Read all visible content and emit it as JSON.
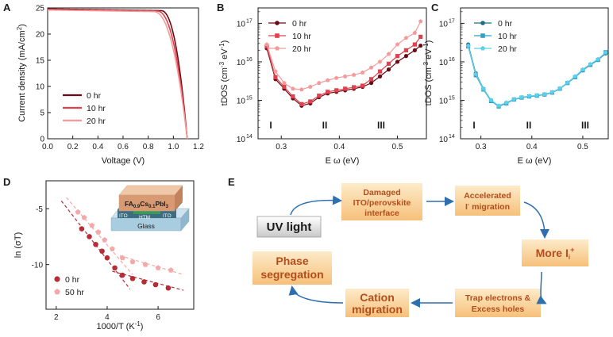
{
  "panels": {
    "A": {
      "letter": "A",
      "chart_data": {
        "type": "line",
        "xlabel": "Voltage (V)",
        "ylabel": "Current density (mA/cm",
        "ylabel_sup": "2",
        "ylabel_end": ")",
        "xlim": [
          0.0,
          1.2
        ],
        "ylim": [
          0,
          25
        ],
        "xticks": [
          "0.0",
          "0.2",
          "0.4",
          "0.6",
          "0.8",
          "1.0",
          "1.2"
        ],
        "yticks": [
          "0",
          "5",
          "10",
          "15",
          "20",
          "25"
        ],
        "series": [
          {
            "name": "0 hr",
            "color": "#6b0a14",
            "voc": 1.11,
            "jsc": 24.8,
            "knee": 0.9
          },
          {
            "name": "10 hr",
            "color": "#e0414f",
            "voc": 1.11,
            "jsc": 24.7,
            "knee": 0.87
          },
          {
            "name": "20 hr",
            "color": "#f59a9a",
            "voc": 1.11,
            "jsc": 24.6,
            "knee": 0.84
          }
        ]
      }
    },
    "B": {
      "letter": "B",
      "chart_data": {
        "type": "line",
        "xlabel": "E ω (eV)",
        "ylabel": "tDOS (cm",
        "ylabel_sup1": "-3",
        "ylabel_mid": " eV",
        "ylabel_sup2": "-1",
        "ylabel_end": ")",
        "xlim": [
          0.26,
          0.55
        ],
        "ylim_log10": [
          14,
          17.4
        ],
        "xticks": [
          "0.3",
          "0.4",
          "0.5"
        ],
        "xtick_values": [
          0.3,
          0.4,
          0.5
        ],
        "yticks": [
          "10",
          "10",
          "10",
          "10"
        ],
        "ytick_exps": [
          "14",
          "15",
          "16",
          "17"
        ],
        "regions": [
          "I",
          "II",
          "III"
        ],
        "x": [
          0.275,
          0.29,
          0.305,
          0.32,
          0.335,
          0.35,
          0.365,
          0.38,
          0.395,
          0.41,
          0.425,
          0.44,
          0.455,
          0.47,
          0.485,
          0.5,
          0.515,
          0.53,
          0.54
        ],
        "series": [
          {
            "name": "0 hr",
            "color": "#6b0a14",
            "marker": "circle",
            "log10": [
              16.35,
              15.55,
              15.3,
              15.05,
              14.86,
              14.92,
              15.08,
              15.18,
              15.22,
              15.26,
              15.3,
              15.35,
              15.45,
              15.62,
              15.8,
              16.0,
              16.15,
              16.3,
              16.42
            ]
          },
          {
            "name": "10 hr",
            "color": "#e0414f",
            "marker": "square",
            "log10": [
              16.4,
              15.6,
              15.35,
              15.1,
              14.9,
              14.97,
              15.12,
              15.22,
              15.26,
              15.3,
              15.34,
              15.38,
              15.55,
              15.75,
              15.95,
              16.15,
              16.3,
              16.45,
              16.65
            ]
          },
          {
            "name": "20 hr",
            "color": "#f59a9a",
            "marker": "pentagon",
            "log10": [
              16.45,
              15.75,
              15.45,
              15.3,
              15.28,
              15.35,
              15.45,
              15.52,
              15.58,
              15.62,
              15.66,
              15.72,
              15.85,
              16.0,
              16.2,
              16.45,
              16.62,
              16.75,
              17.05
            ]
          }
        ]
      }
    },
    "C": {
      "letter": "C",
      "chart_data": {
        "type": "line",
        "xlabel": "E ω (eV)",
        "ylabel": "tDOS (cm",
        "ylabel_sup1": "-3",
        "ylabel_mid": " eV",
        "ylabel_sup2": "-1",
        "ylabel_end": ")",
        "xlim": [
          0.26,
          0.55
        ],
        "ylim_log10": [
          14,
          17.4
        ],
        "xticks": [
          "0.3",
          "0.4",
          "0.5"
        ],
        "xtick_values": [
          0.3,
          0.4,
          0.5
        ],
        "yticks": [
          "10",
          "10",
          "10",
          "10"
        ],
        "ytick_exps": [
          "14",
          "15",
          "16",
          "17"
        ],
        "regions": [
          "I",
          "II",
          "III"
        ],
        "x": [
          0.275,
          0.29,
          0.305,
          0.32,
          0.335,
          0.35,
          0.365,
          0.38,
          0.395,
          0.41,
          0.425,
          0.44,
          0.455,
          0.47,
          0.485,
          0.5,
          0.515,
          0.53,
          0.545
        ],
        "series": [
          {
            "name": "0 hr",
            "color": "#1a6f86",
            "marker": "circle",
            "log10": [
              16.45,
              15.7,
              15.3,
              15.0,
              14.85,
              14.93,
              15.02,
              15.07,
              15.1,
              15.12,
              15.15,
              15.2,
              15.3,
              15.45,
              15.6,
              15.78,
              15.92,
              16.05,
              16.22
            ]
          },
          {
            "name": "10 hr",
            "color": "#2f9fc6",
            "marker": "square",
            "log10": [
              16.4,
              15.65,
              15.28,
              14.98,
              14.84,
              14.92,
              15.02,
              15.07,
              15.1,
              15.12,
              15.15,
              15.2,
              15.3,
              15.45,
              15.6,
              15.78,
              15.92,
              16.05,
              16.25
            ]
          },
          {
            "name": "20 hr",
            "color": "#5ad0ec",
            "marker": "pentagon",
            "log10": [
              16.42,
              15.68,
              15.3,
              15.0,
              14.86,
              14.94,
              15.03,
              15.08,
              15.11,
              15.13,
              15.16,
              15.21,
              15.31,
              15.46,
              15.62,
              15.8,
              15.94,
              16.07,
              16.24
            ]
          }
        ]
      }
    },
    "D": {
      "letter": "D",
      "chart_data": {
        "type": "scatter",
        "xlabel": "1000/T (K",
        "xlabel_sup": "-1",
        "xlabel_end": ")",
        "ylabel": "ln (σT)",
        "xlim": [
          1.6,
          7.4
        ],
        "ylim": [
          -14,
          -2.5
        ],
        "xticks": [
          "2",
          "4",
          "6"
        ],
        "xtick_values": [
          2,
          4,
          6
        ],
        "yticks": [
          "-5",
          "-10"
        ],
        "ytick_values": [
          -5,
          -10
        ],
        "inset": {
          "top_layer": "FA",
          "top_sub1": "0.9",
          "top_mid": "Cs",
          "top_sub2": "0.1",
          "top_end": "PbI",
          "top_sub3": "3",
          "left_electrode": "ITO",
          "htm": "HTM",
          "right_electrode": "ITO",
          "substrate": "Glass"
        },
        "series": [
          {
            "name": "0 hr",
            "color": "#b52d36",
            "marker": "circle",
            "x": [
              3.0,
              3.3,
              3.55,
              3.8,
              4.0,
              4.3,
              4.6,
              5.0,
              5.45,
              5.9,
              6.4
            ],
            "y": [
              -6.8,
              -7.5,
              -8.2,
              -8.8,
              -9.4,
              -10.3,
              -10.95,
              -11.25,
              -11.55,
              -11.8,
              -12.1
            ],
            "fit_lines": [
              {
                "x": [
                  2.2,
                  4.9
                ],
                "y": [
                  -4.3,
                  -12.2
                ]
              },
              {
                "x": [
                  4.2,
                  7.0
                ],
                "y": [
                  -10.6,
                  -12.3
                ]
              }
            ]
          },
          {
            "name": "50 hr",
            "color": "#f5a8a8",
            "marker": "pentagon",
            "x": [
              2.85,
              3.1,
              3.4,
              3.65,
              3.9,
              4.2,
              4.6,
              5.0,
              5.5,
              6.0,
              6.5
            ],
            "y": [
              -5.3,
              -5.8,
              -6.5,
              -7.1,
              -7.8,
              -8.6,
              -9.4,
              -9.75,
              -10.0,
              -10.3,
              -10.5
            ],
            "fit_lines": [
              {
                "x": [
                  2.4,
                  5.0
                ],
                "y": [
                  -4.0,
                  -10.9
                ]
              },
              {
                "x": [
                  4.5,
                  7.0
                ],
                "y": [
                  -9.2,
                  -10.9
                ]
              }
            ]
          }
        ]
      }
    },
    "E": {
      "letter": "E",
      "uv": "UV light",
      "damaged_line1": "Damaged",
      "damaged_line2": "ITO/perovskite",
      "damaged_line3": "interface",
      "accel_line1": "Accelerated",
      "accel_line2": "I",
      "accel_line2_sup": "-",
      "accel_line2_end": " migration",
      "more_main": "More I",
      "more_sub": "i",
      "more_sup": "+",
      "trap_line1": "Trap electrons &",
      "trap_line2": "Excess holes",
      "cation_line1": "Cation",
      "cation_line2": "migration",
      "phase_line1": "Phase",
      "phase_line2": "segregation"
    }
  }
}
